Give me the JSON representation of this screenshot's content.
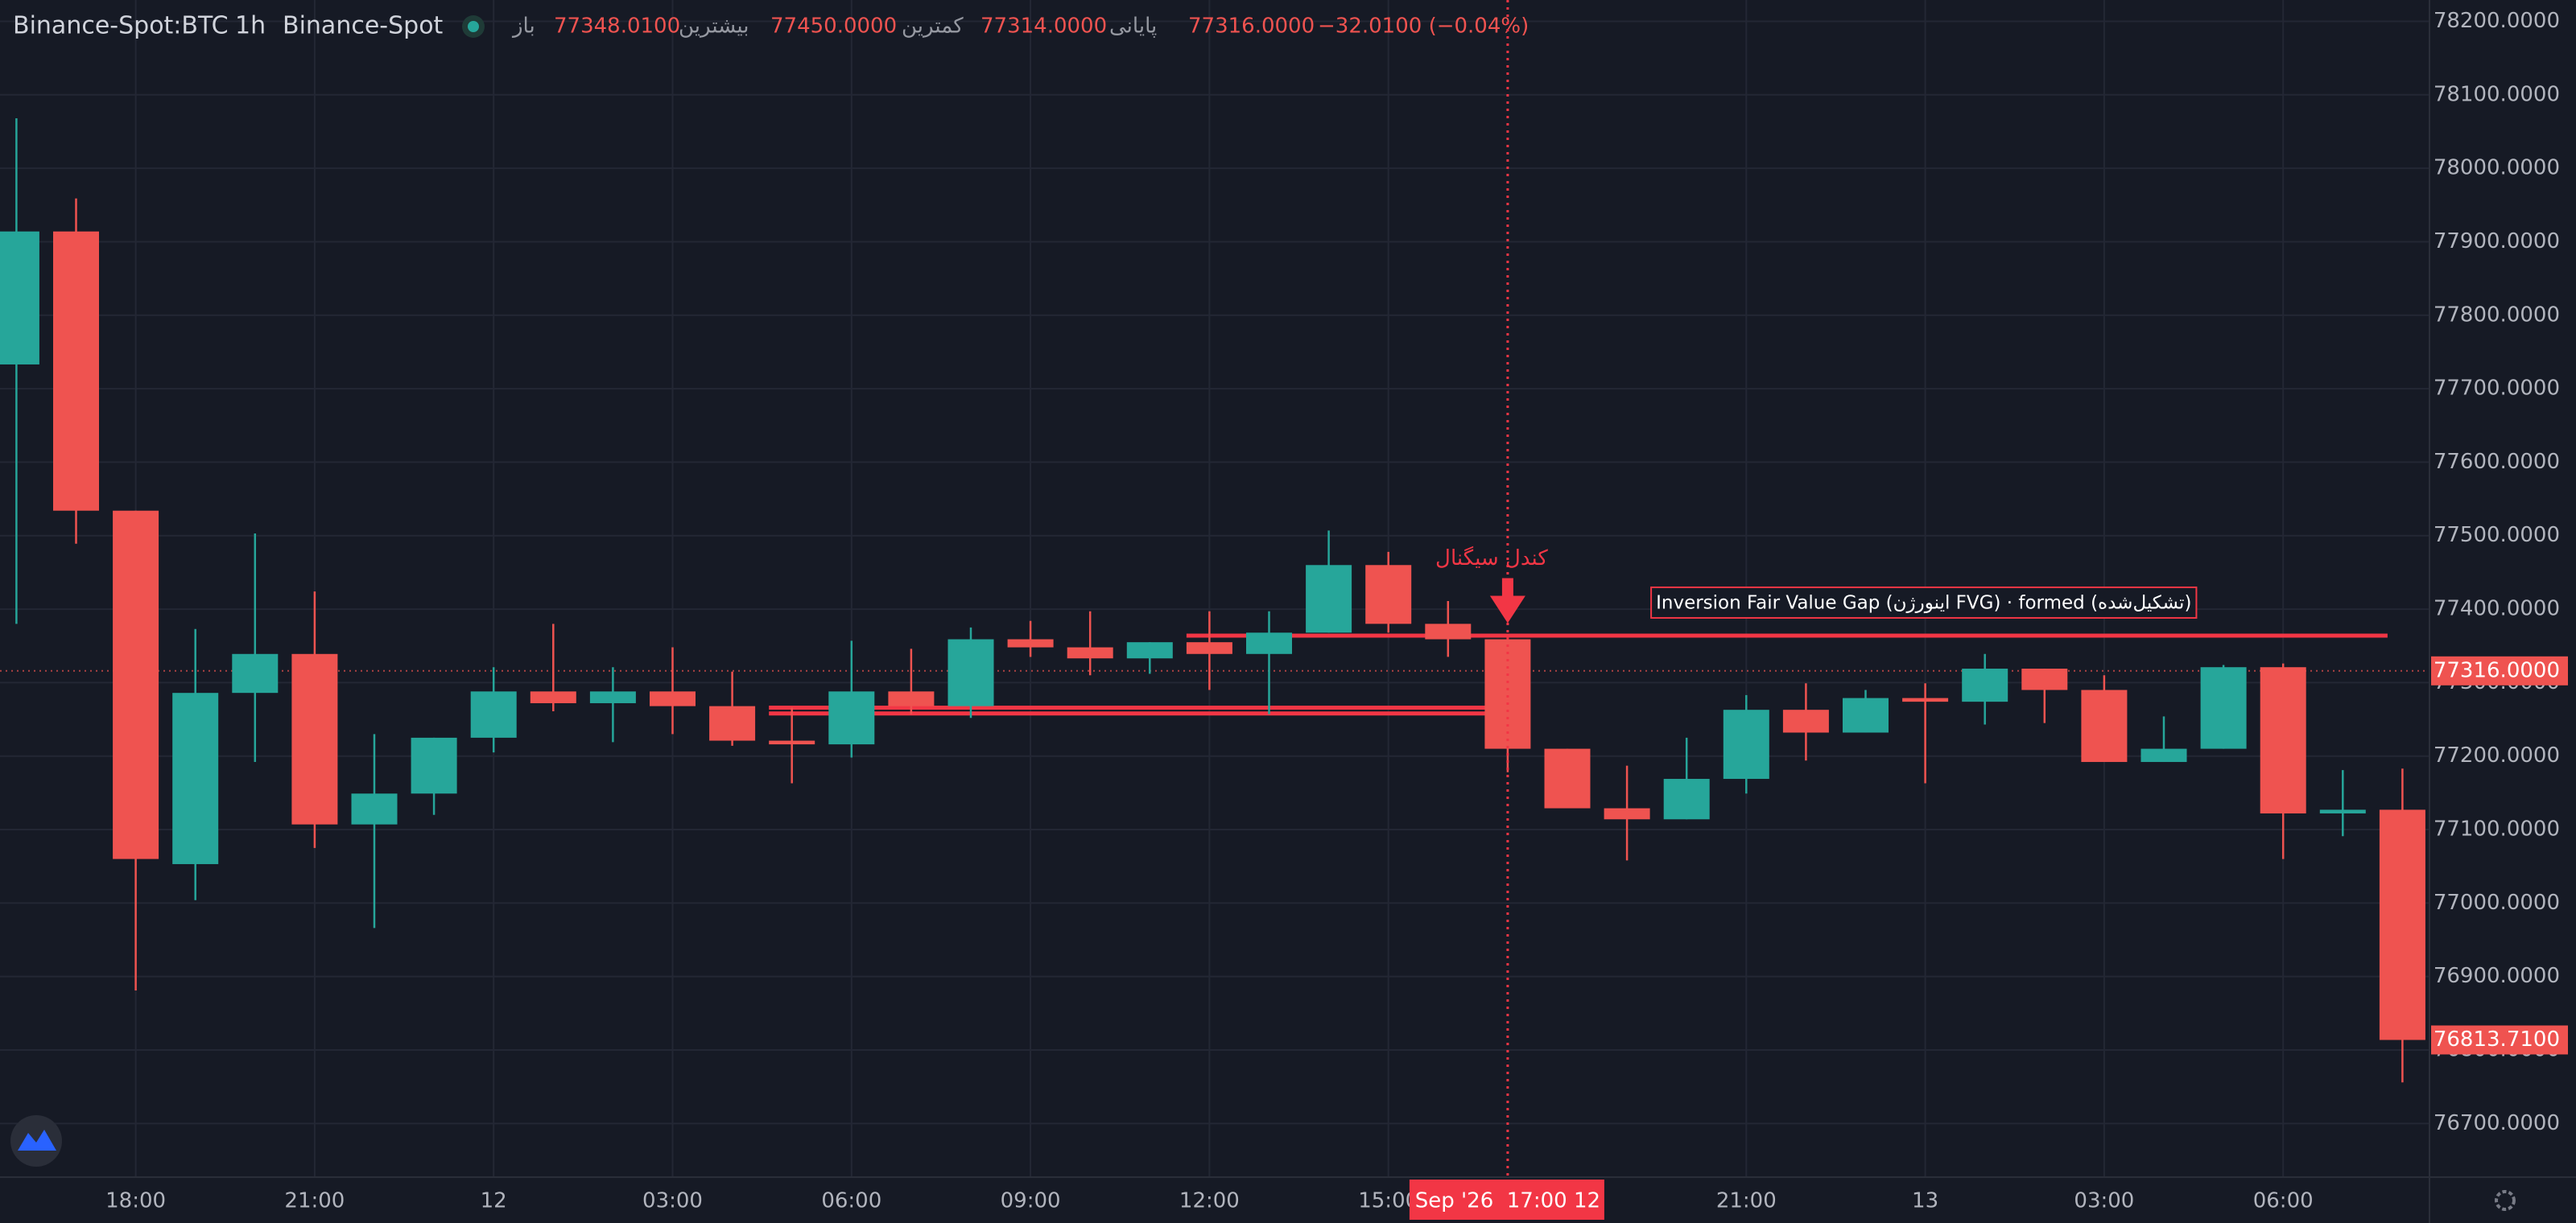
{
  "header": {
    "symbol": "Binance-Spot:BTC",
    "interval": "1h",
    "exchange": "Binance-Spot",
    "ohlc": [
      {
        "label": "باز",
        "value": "77348.0100"
      },
      {
        "label": "بیشترین",
        "value": "77450.0000"
      },
      {
        "label": "کمترین",
        "value": "77314.0000"
      },
      {
        "label": "پایانی",
        "value": "77316.0000"
      }
    ],
    "change": "−32.0100 (−0.04%)"
  },
  "chart_data": {
    "type": "candlestick",
    "categories": [
      null,
      null,
      "18:00",
      null,
      null,
      "21:00",
      null,
      null,
      "12",
      null,
      null,
      "03:00",
      null,
      null,
      "06:00",
      null,
      null,
      "09:00",
      null,
      null,
      "12:00",
      null,
      null,
      "15:00",
      null,
      null,
      null,
      null,
      null,
      "21:00",
      null,
      null,
      "13",
      null,
      null,
      "03:00",
      null,
      null,
      "06:00",
      null,
      null
    ],
    "open": [
      77733,
      77914,
      77534,
      77053,
      77286,
      77339,
      77107,
      77149,
      77225,
      77288,
      77272,
      77288,
      77268,
      77221,
      77216,
      77288,
      77268,
      77359,
      77348,
      77333,
      77355,
      77339,
      77368,
      77460,
      77380,
      77359,
      77210,
      77129,
      77114,
      77169,
      77263,
      77232,
      77279,
      77274,
      77319,
      77290,
      77192,
      77210,
      77321,
      77122,
      77127
    ],
    "high": [
      78068,
      77959,
      77534,
      77373,
      77503,
      77424,
      77230,
      77225,
      77321,
      77380,
      77321,
      77348,
      77315,
      77266,
      77357,
      77346,
      77375,
      77384,
      77397,
      77355,
      77397,
      77397,
      77507,
      77478,
      77411,
      77359,
      77210,
      77187,
      77225,
      77283,
      77299,
      77290,
      77299,
      77339,
      77319,
      77310,
      77254,
      77324,
      77326,
      77181,
      77183
    ],
    "low": [
      77380,
      77489,
      76881,
      77004,
      77192,
      77075,
      76966,
      77120,
      77205,
      77261,
      77219,
      77230,
      77214,
      77163,
      77198,
      77257,
      77252,
      77335,
      77310,
      77312,
      77290,
      77257,
      77368,
      77368,
      77335,
      77178,
      77129,
      77058,
      77114,
      77149,
      77194,
      77232,
      77163,
      77243,
      77245,
      77192,
      77192,
      77210,
      77060,
      77091,
      76756
    ],
    "close": [
      77914,
      77534,
      77060,
      77286,
      77339,
      77107,
      77149,
      77225,
      77288,
      77272,
      77288,
      77268,
      77221,
      77216,
      77288,
      77268,
      77359,
      77348,
      77333,
      77355,
      77339,
      77368,
      77460,
      77380,
      77359,
      77210,
      77129,
      77114,
      77169,
      77263,
      77232,
      77279,
      77274,
      77319,
      77290,
      77192,
      77210,
      77321,
      77122,
      77127,
      76813.71
    ],
    "up_color": "#26a69a",
    "down_color": "#ef5350",
    "ylim": [
      76627,
      78229
    ],
    "yticks": [
      {
        "value": 76700,
        "label": "76700.0000"
      },
      {
        "value": 76800,
        "label": "76800.0000"
      },
      {
        "value": 76900,
        "label": "76900.0000"
      },
      {
        "value": 77000,
        "label": "77000.0000"
      },
      {
        "value": 77100,
        "label": "77100.0000"
      },
      {
        "value": 77200,
        "label": "77200.0000"
      },
      {
        "value": 77300,
        "label": "77300.0000"
      },
      {
        "value": 77400,
        "label": "77400.0000"
      },
      {
        "value": 77500,
        "label": "77500.0000"
      },
      {
        "value": 77600,
        "label": "77600.0000"
      },
      {
        "value": 77700,
        "label": "77700.0000"
      },
      {
        "value": 77800,
        "label": "77800.0000"
      },
      {
        "value": 77900,
        "label": "77900.0000"
      },
      {
        "value": 78000,
        "label": "78000.0000"
      },
      {
        "value": 78100,
        "label": "78100.0000"
      },
      {
        "value": 78200,
        "label": "78200.0000"
      }
    ],
    "grid": true,
    "current_price": {
      "value": 77316,
      "label": "77316.0000"
    },
    "last_price": {
      "value": 76813.71,
      "label": "76813.7100"
    },
    "crosshair": {
      "index": 25,
      "label": "Sep '26  17:00 12"
    },
    "level_color": "#f23645",
    "levels": [
      {
        "value": 77364,
        "from": 20,
        "to": 40
      },
      {
        "value": 77266,
        "from": 13,
        "to": 25
      },
      {
        "value": 77258,
        "from": 13,
        "to": 25
      }
    ],
    "signal": {
      "text": "کندل سیگنال",
      "index": 25
    },
    "fvg_label": {
      "text": "Inversion Fair Value Gap (اینورژن FVG) · formed (تشکیل‌شده)",
      "index": 27
    }
  }
}
